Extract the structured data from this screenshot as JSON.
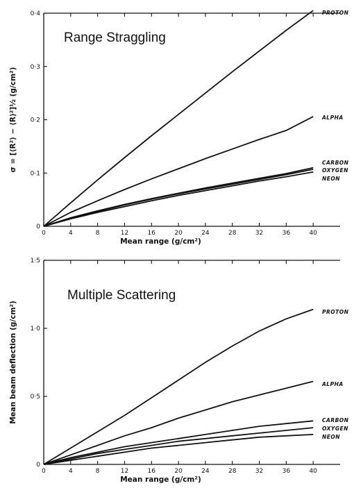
{
  "chart_data": [
    {
      "type": "line",
      "title": "Range Straggling",
      "xlabel": "Mean range (g/cm²)",
      "ylabel": "σ = [⟨R²⟩ − ⟨R⟩²]½ (g/cm²)",
      "xlim": [
        0,
        44
      ],
      "ylim": [
        0,
        0.4
      ],
      "xticks": [
        0,
        4,
        8,
        12,
        16,
        20,
        24,
        28,
        32,
        36,
        40
      ],
      "x_tick_labels": [
        "0",
        "4",
        "8",
        "12",
        "16",
        "20",
        "24",
        "28",
        "32",
        "36",
        "40"
      ],
      "yticks": [
        0,
        0.1,
        0.2,
        0.3,
        0.4
      ],
      "y_tick_labels": [
        "0",
        "0·1",
        "0·2",
        "0·3",
        "0·4"
      ],
      "grid": false,
      "series": [
        {
          "name": "PROTON",
          "x": [
            0,
            4,
            8,
            12,
            16,
            20,
            24,
            28,
            32,
            36,
            40
          ],
          "y": [
            0,
            0.044,
            0.087,
            0.129,
            0.17,
            0.21,
            0.25,
            0.29,
            0.329,
            0.368,
            0.405
          ]
        },
        {
          "name": "ALPHA",
          "x": [
            0,
            4,
            8,
            12,
            16,
            20,
            24,
            28,
            32,
            36,
            40
          ],
          "y": [
            0,
            0.026,
            0.048,
            0.069,
            0.089,
            0.108,
            0.127,
            0.145,
            0.163,
            0.18,
            0.206
          ]
        },
        {
          "name": "CARBON",
          "x": [
            0,
            4,
            8,
            12,
            16,
            20,
            24,
            28,
            32,
            36,
            40
          ],
          "y": [
            0,
            0.016,
            0.029,
            0.041,
            0.052,
            0.062,
            0.072,
            0.081,
            0.09,
            0.099,
            0.11
          ]
        },
        {
          "name": "OXYGEN",
          "x": [
            0,
            4,
            8,
            12,
            16,
            20,
            24,
            28,
            32,
            36,
            40
          ],
          "y": [
            0,
            0.015,
            0.028,
            0.04,
            0.051,
            0.061,
            0.07,
            0.079,
            0.088,
            0.097,
            0.107
          ]
        },
        {
          "name": "NEON",
          "x": [
            0,
            4,
            8,
            12,
            16,
            20,
            24,
            28,
            32,
            36,
            40
          ],
          "y": [
            0,
            0.014,
            0.026,
            0.037,
            0.048,
            0.058,
            0.067,
            0.076,
            0.085,
            0.093,
            0.102
          ]
        }
      ]
    },
    {
      "type": "line",
      "title": "Multiple Scattering",
      "xlabel": "Mean range (g/cm²)",
      "ylabel": "Mean beam deflection (g/cm²)",
      "xlim": [
        0,
        44
      ],
      "ylim": [
        0,
        1.5
      ],
      "xticks": [
        0,
        4,
        8,
        12,
        16,
        20,
        24,
        28,
        32,
        36,
        40
      ],
      "x_tick_labels": [
        "0",
        "4",
        "8",
        "12",
        "16",
        "20",
        "24",
        "28",
        "32",
        "36",
        "40"
      ],
      "yticks": [
        0,
        0.5,
        1.0,
        1.5
      ],
      "y_tick_labels": [
        "0",
        "0·5",
        "1·0",
        "1·5"
      ],
      "grid": false,
      "series": [
        {
          "name": "PROTON",
          "x": [
            0,
            4,
            8,
            12,
            16,
            20,
            24,
            28,
            32,
            36,
            40
          ],
          "y": [
            0,
            0.12,
            0.24,
            0.36,
            0.49,
            0.62,
            0.75,
            0.87,
            0.98,
            1.07,
            1.14
          ]
        },
        {
          "name": "ALPHA",
          "x": [
            0,
            4,
            8,
            12,
            16,
            20,
            24,
            28,
            32,
            36,
            40
          ],
          "y": [
            0,
            0.07,
            0.14,
            0.21,
            0.27,
            0.34,
            0.4,
            0.46,
            0.51,
            0.56,
            0.61
          ]
        },
        {
          "name": "CARBON",
          "x": [
            0,
            4,
            8,
            12,
            16,
            20,
            24,
            28,
            32,
            36,
            40
          ],
          "y": [
            0,
            0.05,
            0.09,
            0.13,
            0.16,
            0.19,
            0.22,
            0.25,
            0.28,
            0.3,
            0.32
          ]
        },
        {
          "name": "OXYGEN",
          "x": [
            0,
            4,
            8,
            12,
            16,
            20,
            24,
            28,
            32,
            36,
            40
          ],
          "y": [
            0,
            0.04,
            0.08,
            0.11,
            0.14,
            0.17,
            0.19,
            0.21,
            0.23,
            0.25,
            0.27
          ]
        },
        {
          "name": "NEON",
          "x": [
            0,
            4,
            8,
            12,
            16,
            20,
            24,
            28,
            32,
            36,
            40
          ],
          "y": [
            0,
            0.03,
            0.06,
            0.09,
            0.12,
            0.14,
            0.16,
            0.18,
            0.2,
            0.21,
            0.22
          ]
        }
      ]
    }
  ]
}
